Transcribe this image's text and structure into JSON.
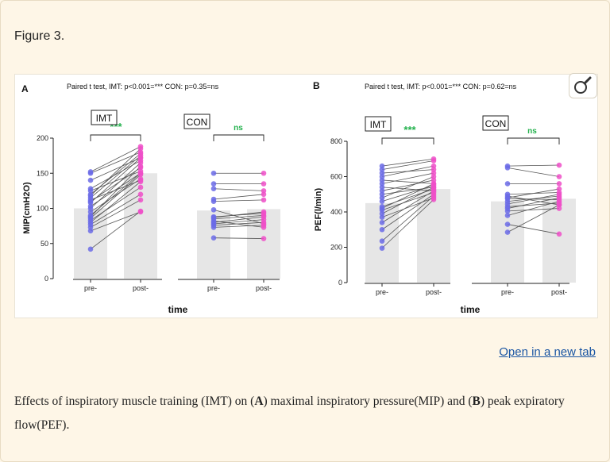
{
  "figure_title": "Figure 3.",
  "open_link": "Open in a new tab",
  "caption": {
    "p1": "Effects of inspiratory muscle training (IMT) on (",
    "a": "A",
    "p2": ") maximal inspiratory pressure(MIP) and (",
    "b": "B",
    "p3": ") peak expiratory flow(PEF)."
  },
  "icons": {
    "magnifier": "magnifier-icon"
  },
  "colors": {
    "pre": "#6b6be6",
    "post": "#ee4fc8",
    "bar": "#e6e6e6",
    "sig": "#22b14c"
  },
  "chart_data": [
    {
      "type": "bar",
      "panel": "A",
      "title": "Paired t test, IMT: p<0.001=*** CON: p=0.35=ns",
      "ylabel": "MIP(cmH2O)",
      "xlabel": "time",
      "ylim": [
        0,
        200
      ],
      "yticks": [
        "0",
        "50",
        "100",
        "150",
        "200"
      ],
      "groups": [
        {
          "name": "IMT",
          "sig": "***",
          "categories": [
            "pre-",
            "post-"
          ],
          "values": [
            100,
            150
          ],
          "paired": [
            [
              42,
              96
            ],
            [
              68,
              95
            ],
            [
              73,
              112
            ],
            [
              77,
              120
            ],
            [
              80,
              138
            ],
            [
              83,
              130
            ],
            [
              86,
              148
            ],
            [
              88,
              160
            ],
            [
              90,
              150
            ],
            [
              95,
              142
            ],
            [
              100,
              165
            ],
            [
              103,
              150
            ],
            [
              108,
              172
            ],
            [
              110,
              158
            ],
            [
              112,
              140
            ],
            [
              115,
              175
            ],
            [
              118,
              185
            ],
            [
              120,
              178
            ],
            [
              125,
              153
            ],
            [
              128,
              168
            ],
            [
              140,
              172
            ],
            [
              150,
              180
            ],
            [
              152,
              188
            ]
          ]
        },
        {
          "name": "CON",
          "sig": "ns",
          "categories": [
            "pre-",
            "post-"
          ],
          "values": [
            97,
            99
          ],
          "paired": [
            [
              58,
              57
            ],
            [
              73,
              76
            ],
            [
              76,
              80
            ],
            [
              78,
              84
            ],
            [
              80,
              88
            ],
            [
              82,
              73
            ],
            [
              85,
              90
            ],
            [
              87,
              95
            ],
            [
              88,
              93
            ],
            [
              98,
              78
            ],
            [
              110,
              112
            ],
            [
              113,
              120
            ],
            [
              128,
              125
            ],
            [
              135,
              135
            ],
            [
              150,
              150
            ]
          ]
        }
      ]
    },
    {
      "type": "bar",
      "panel": "B",
      "title": "Paired t test, IMT: p<0.001=*** CON: p=0.62=ns",
      "ylabel": "PEF(l/min)",
      "xlabel": "time",
      "ylim": [
        0,
        800
      ],
      "yticks": [
        "0",
        "200",
        "400",
        "600",
        "800"
      ],
      "groups": [
        {
          "name": "IMT",
          "sig": "***",
          "categories": [
            "pre-",
            "post-"
          ],
          "values": [
            450,
            530
          ],
          "paired": [
            [
              195,
              470
            ],
            [
              235,
              490
            ],
            [
              300,
              500
            ],
            [
              340,
              520
            ],
            [
              370,
              480
            ],
            [
              390,
              540
            ],
            [
              410,
              510
            ],
            [
              420,
              560
            ],
            [
              430,
              530
            ],
            [
              460,
              550
            ],
            [
              480,
              600
            ],
            [
              500,
              540
            ],
            [
              520,
              580
            ],
            [
              540,
              520
            ],
            [
              560,
              620
            ],
            [
              580,
              560
            ],
            [
              600,
              660
            ],
            [
              620,
              640
            ],
            [
              640,
              690
            ],
            [
              660,
              700
            ]
          ]
        },
        {
          "name": "CON",
          "sig": "ns",
          "categories": [
            "pre-",
            "post-"
          ],
          "values": [
            460,
            475
          ],
          "paired": [
            [
              285,
              440
            ],
            [
              330,
              275
            ],
            [
              380,
              460
            ],
            [
              405,
              420
            ],
            [
              420,
              480
            ],
            [
              430,
              450
            ],
            [
              445,
              500
            ],
            [
              460,
              490
            ],
            [
              475,
              470
            ],
            [
              480,
              530
            ],
            [
              490,
              440
            ],
            [
              500,
              510
            ],
            [
              560,
              560
            ],
            [
              650,
              600
            ],
            [
              660,
              665
            ]
          ]
        }
      ]
    }
  ]
}
